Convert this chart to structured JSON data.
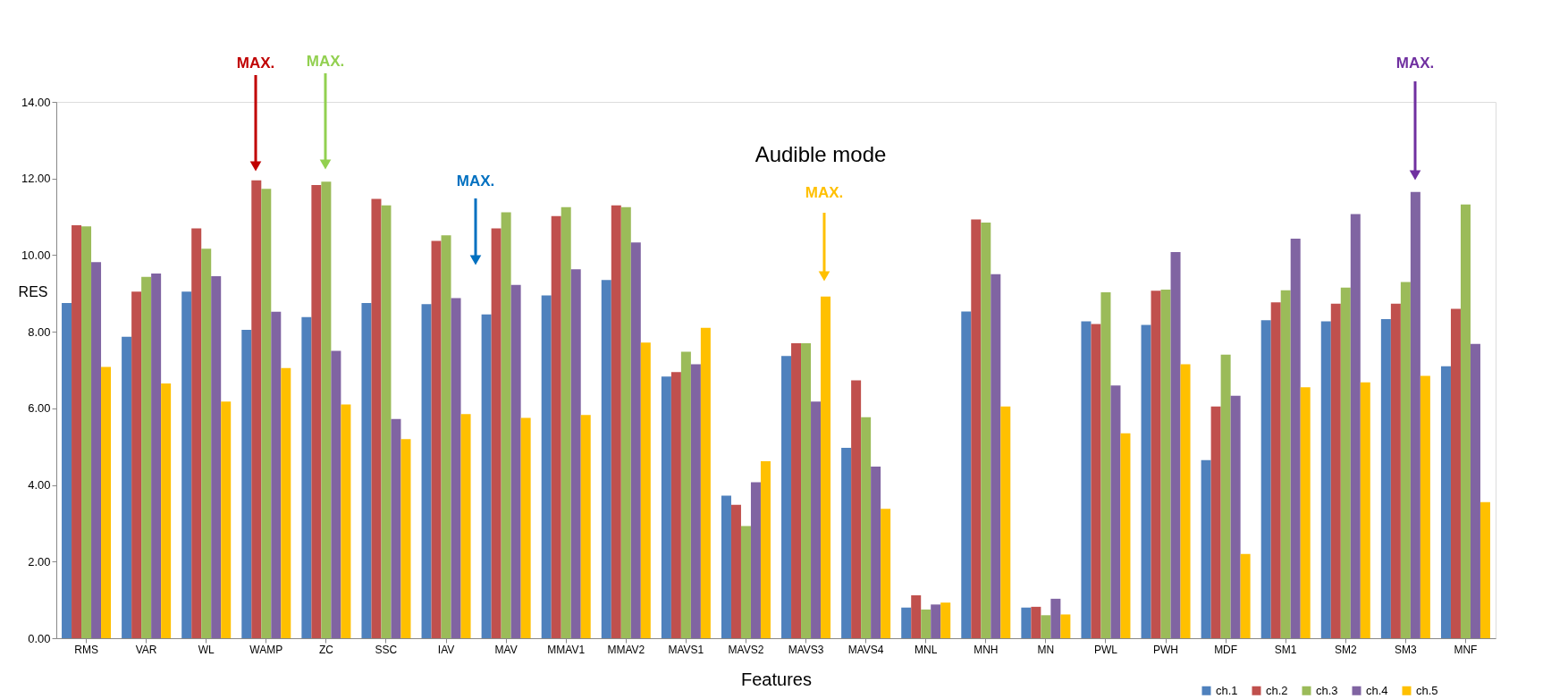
{
  "chart_data": {
    "type": "bar",
    "title": "Audible mode",
    "xlabel": "Features",
    "ylabel": "RES",
    "categories": [
      "RMS",
      "VAR",
      "WL",
      "WAMP",
      "ZC",
      "SSC",
      "IAV",
      "MAV",
      "MMAV1",
      "MMAV2",
      "MAVS1",
      "MAVS2",
      "MAVS3",
      "MAVS4",
      "MNL",
      "MNH",
      "MN",
      "PWL",
      "PWH",
      "MDF",
      "SM1",
      "SM2",
      "SM3",
      "MNF"
    ],
    "series": [
      {
        "name": "ch.1",
        "color": "#4f81bd",
        "values": [
          8.75,
          7.87,
          9.05,
          8.05,
          8.38,
          8.75,
          8.72,
          8.45,
          8.95,
          9.35,
          6.83,
          3.72,
          7.37,
          4.97,
          0.8,
          8.53,
          0.8,
          8.27,
          8.18,
          4.65,
          8.3,
          8.27,
          8.33,
          7.1
        ]
      },
      {
        "name": "ch.2",
        "color": "#c0504d",
        "values": [
          10.78,
          9.05,
          10.7,
          11.95,
          11.83,
          11.47,
          10.37,
          10.7,
          11.02,
          11.3,
          6.95,
          3.48,
          7.7,
          6.73,
          1.12,
          10.93,
          0.82,
          8.2,
          9.07,
          6.05,
          8.77,
          8.73,
          8.73,
          8.6
        ]
      },
      {
        "name": "ch.3",
        "color": "#9bbb59",
        "values": [
          10.75,
          9.43,
          10.17,
          11.73,
          11.92,
          11.3,
          10.52,
          11.12,
          11.25,
          11.25,
          7.48,
          2.93,
          7.7,
          5.77,
          0.75,
          10.85,
          0.6,
          9.03,
          9.1,
          7.4,
          9.08,
          9.15,
          9.3,
          11.32
        ]
      },
      {
        "name": "ch.4",
        "color": "#8064a2",
        "values": [
          9.82,
          9.52,
          9.45,
          8.52,
          7.5,
          5.72,
          8.88,
          9.22,
          9.63,
          10.33,
          7.15,
          4.07,
          6.18,
          4.48,
          0.88,
          9.5,
          1.03,
          6.6,
          10.08,
          6.33,
          10.43,
          11.07,
          11.65,
          7.68
        ]
      },
      {
        "name": "ch.5",
        "color": "#ffc000",
        "values": [
          7.08,
          6.65,
          6.18,
          7.05,
          6.1,
          5.2,
          5.85,
          5.75,
          5.83,
          7.72,
          8.1,
          4.62,
          8.92,
          3.38,
          0.93,
          6.05,
          0.62,
          5.35,
          7.15,
          2.2,
          6.55,
          6.68,
          6.85,
          3.55
        ]
      }
    ],
    "ylim": [
      0,
      14
    ],
    "yticks": [
      {
        "value": 0,
        "label": "0.00"
      },
      {
        "value": 2,
        "label": "2.00"
      },
      {
        "value": 4,
        "label": "4.00"
      },
      {
        "value": 6,
        "label": "6.00"
      },
      {
        "value": 8,
        "label": "8.00"
      },
      {
        "value": 10,
        "label": "10.00"
      },
      {
        "value": 12,
        "label": "12.00"
      },
      {
        "value": 14,
        "label": "14.00"
      }
    ],
    "grid": false,
    "legend": "bottom right",
    "annotations": [
      "MAX.",
      "MAX.",
      "MAX.",
      "MAX.",
      "MAX."
    ]
  }
}
